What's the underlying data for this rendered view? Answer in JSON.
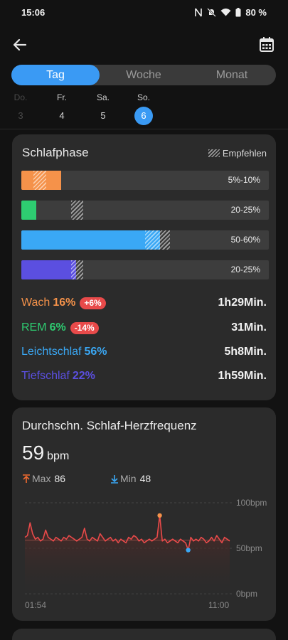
{
  "status": {
    "time": "15:06",
    "battery": "80 %"
  },
  "tabs": [
    {
      "label": "Tag",
      "active": true
    },
    {
      "label": "Woche",
      "active": false
    },
    {
      "label": "Monat",
      "active": false
    }
  ],
  "days": [
    {
      "name": "Do.",
      "num": "3",
      "state": "dim"
    },
    {
      "name": "Fr.",
      "num": "4",
      "state": "normal"
    },
    {
      "name": "Sa.",
      "num": "5",
      "state": "normal"
    },
    {
      "name": "So.",
      "num": "6",
      "state": "selected"
    }
  ],
  "sleep_phase": {
    "title": "Schlafphase",
    "legend_label": "Empfehlen",
    "bars": [
      {
        "phase": "Wach",
        "color": "#f5924a",
        "value_pct": 16,
        "rec_low": 5,
        "rec_high": 10,
        "range_label": "5%-10%"
      },
      {
        "phase": "REM",
        "color": "#2ecc71",
        "value_pct": 6,
        "rec_low": 20,
        "rec_high": 25,
        "range_label": "20-25%"
      },
      {
        "phase": "Leichtschlaf",
        "color": "#3aa8f5",
        "value_pct": 56,
        "rec_low": 50,
        "rec_high": 60,
        "range_label": "50-60%"
      },
      {
        "phase": "Tiefschlaf",
        "color": "#5b4fe0",
        "value_pct": 22,
        "rec_low": 20,
        "rec_high": 25,
        "range_label": "20-25%"
      }
    ],
    "stats": [
      {
        "name": "Wach",
        "pct": "16%",
        "delta": "+6%",
        "duration": "1h29Min.",
        "color": "#f5924a"
      },
      {
        "name": "REM",
        "pct": "6%",
        "delta": "-14%",
        "duration": "31Min.",
        "color": "#2ecc71"
      },
      {
        "name": "Leichtschlaf",
        "pct": "56%",
        "delta": "",
        "duration": "5h8Min.",
        "color": "#3aa8f5"
      },
      {
        "name": "Tiefschlaf",
        "pct": "22%",
        "delta": "",
        "duration": "1h59Min.",
        "color": "#5b4fe0"
      }
    ]
  },
  "heart_rate": {
    "title": "Durchschn. Schlaf-Herzfrequenz",
    "value": "59",
    "unit": "bpm",
    "max_label": "Max",
    "max_value": "86",
    "min_label": "Min",
    "min_value": "48"
  },
  "chart_data": {
    "type": "line",
    "title": "",
    "x_start_label": "01:54",
    "x_end_label": "11:00",
    "y_ticks": [
      "100bpm",
      "50bpm",
      "0bpm"
    ],
    "ylim": [
      0,
      100
    ],
    "average": 59,
    "line_color": "#e84a4a",
    "max_marker_color": "#f5924a",
    "min_marker_color": "#3aa8f5",
    "max_index": 52,
    "min_index": 63,
    "series": [
      {
        "values": [
          62,
          64,
          78,
          66,
          60,
          62,
          58,
          60,
          70,
          62,
          60,
          58,
          62,
          60,
          58,
          62,
          60,
          64,
          62,
          60,
          58,
          60,
          62,
          72,
          60,
          58,
          62,
          60,
          58,
          66,
          62,
          58,
          60,
          62,
          58,
          60,
          56,
          60,
          58,
          56,
          62,
          60,
          64,
          62,
          58,
          60,
          56,
          58,
          60,
          58,
          60,
          62,
          86,
          58,
          60,
          56,
          58,
          60,
          58,
          56,
          60,
          58,
          56,
          48,
          62,
          58,
          60,
          58,
          62,
          60,
          56,
          58,
          62,
          58,
          64,
          60,
          56,
          62,
          60,
          58
        ]
      }
    ]
  }
}
